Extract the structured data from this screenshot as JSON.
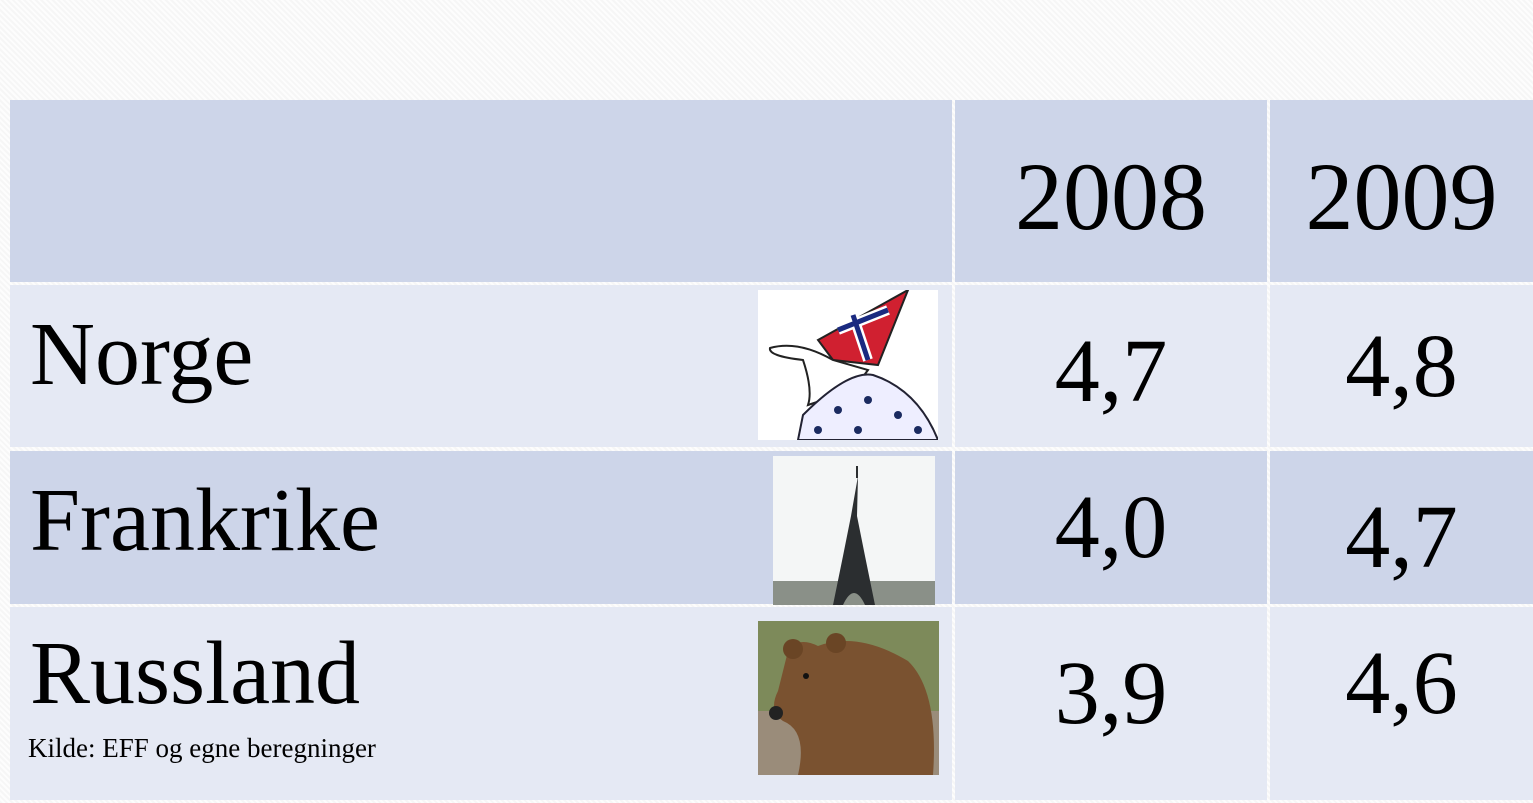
{
  "table": {
    "columns": [
      "2008",
      "2009"
    ],
    "rows": [
      {
        "label": "Norge",
        "values": [
          "4,7",
          "4,8"
        ]
      },
      {
        "label": "Frankrike",
        "values": [
          "4,0",
          "4,7"
        ]
      },
      {
        "label": "Russland",
        "values": [
          "3,9",
          "4,6"
        ]
      }
    ],
    "note": "Kilde: EFF og egne beregninger"
  }
}
